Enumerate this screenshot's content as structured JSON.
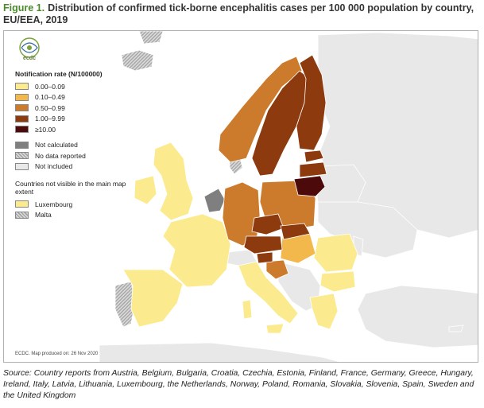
{
  "figure": {
    "label": "Figure 1.",
    "title": "Distribution of confirmed tick-borne encephalitis cases per 100 000 population by country, EU/EEA, 2019"
  },
  "logo": {
    "text": "ecdc",
    "icon": "ecdc-logo-icon"
  },
  "legend": {
    "title": "Notification rate (N/100000)",
    "classes": [
      {
        "label": "0.00–0.09",
        "color": "#fbeb8e"
      },
      {
        "label": "0.10–0.49",
        "color": "#f2b84b"
      },
      {
        "label": "0.50–0.99",
        "color": "#cc7a2c"
      },
      {
        "label": "1.00–9.99",
        "color": "#8c3a0e"
      },
      {
        "label": "≥10.00",
        "color": "#4d0a0a"
      }
    ],
    "other": [
      {
        "label": "Not calculated",
        "color": "#7f7f7f"
      },
      {
        "label": "No data reported",
        "pattern": "hatched"
      },
      {
        "label": "Not included",
        "color": "#e8e8e8"
      }
    ],
    "not_visible_title": "Countries not visible in the main map extent",
    "not_visible": [
      {
        "label": "Luxembourg",
        "color": "#fbeb8e"
      },
      {
        "label": "Malta",
        "pattern": "hatched"
      }
    ]
  },
  "footnote": "ECDC. Map produced on: 26 Nov 2020",
  "source": "Source: Country reports from Austria, Belgium, Bulgaria, Croatia, Czechia, Estonia, Finland, France, Germany, Greece, Hungary, Ireland, Italy, Latvia, Lithuania, Luxembourg, the Netherlands, Norway, Poland, Romania, Slovakia, Slovenia, Spain, Sweden and the United Kingdom",
  "colors": {
    "sea": "#ffffff",
    "border": "#ffffff",
    "outline": "#9a9a9a"
  }
}
